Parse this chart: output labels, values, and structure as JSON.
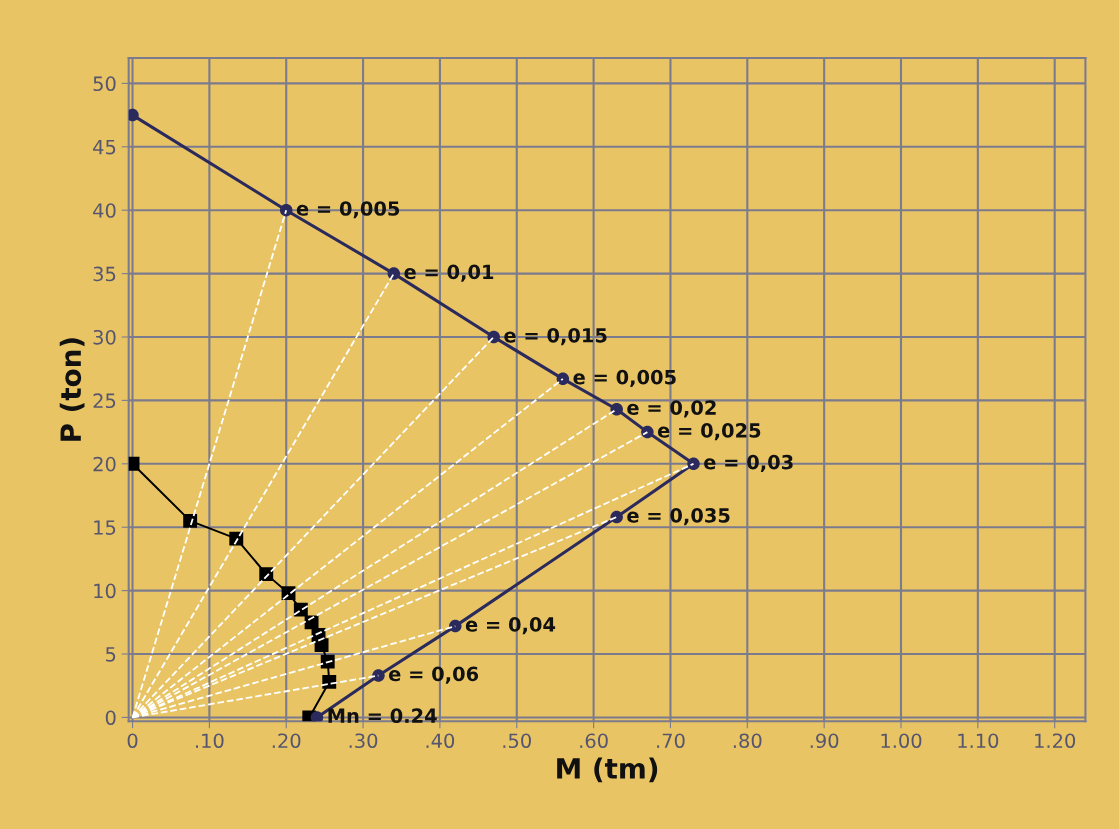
{
  "chart_data": {
    "type": "line",
    "xlabel": "M (tm)",
    "ylabel": "P (ton)",
    "xlim": [
      -0.005,
      1.24
    ],
    "ylim": [
      -0.3,
      52
    ],
    "xticks": [
      0,
      {
        "value": 0.1,
        "label": ".10"
      },
      {
        "value": 0.2,
        "label": ".20"
      },
      {
        "value": 0.3,
        "label": ".30"
      },
      {
        "value": 0.4,
        "label": ".40"
      },
      {
        "value": 0.5,
        "label": ".50"
      },
      {
        "value": 0.6,
        "label": ".60"
      },
      {
        "value": 0.7,
        "label": ".70"
      },
      {
        "value": 0.8,
        "label": ".80"
      },
      {
        "value": 0.9,
        "label": ".90"
      },
      {
        "value": 1.0,
        "label": "1.00"
      },
      {
        "value": 1.1,
        "label": "1.10"
      },
      {
        "value": 1.2,
        "label": "1.20"
      }
    ],
    "yticks": [
      0,
      5,
      10,
      15,
      20,
      25,
      30,
      35,
      40,
      45,
      50
    ],
    "grid": true,
    "series": [
      {
        "color": "#ffffff",
        "line_style": "dashed",
        "marker": "none",
        "x": [
          0,
          0.2
        ],
        "values": [
          0,
          40
        ]
      },
      {
        "color": "#ffffff",
        "line_style": "dashed",
        "marker": "none",
        "x": [
          0,
          0.34
        ],
        "values": [
          0,
          35
        ]
      },
      {
        "color": "#ffffff",
        "line_style": "dashed",
        "marker": "none",
        "x": [
          0,
          0.47
        ],
        "values": [
          0,
          30
        ]
      },
      {
        "color": "#ffffff",
        "line_style": "dashed",
        "marker": "none",
        "x": [
          0,
          0.56
        ],
        "values": [
          0,
          26.7
        ]
      },
      {
        "color": "#ffffff",
        "line_style": "dashed",
        "marker": "none",
        "x": [
          0,
          0.63
        ],
        "values": [
          0,
          24.3
        ]
      },
      {
        "color": "#ffffff",
        "line_style": "dashed",
        "marker": "none",
        "x": [
          0,
          0.67
        ],
        "values": [
          0,
          22.5
        ]
      },
      {
        "color": "#ffffff",
        "line_style": "dashed",
        "marker": "none",
        "x": [
          0,
          0.73
        ],
        "values": [
          0,
          20
        ]
      },
      {
        "color": "#ffffff",
        "line_style": "dashed",
        "marker": "none",
        "x": [
          0,
          0.63
        ],
        "values": [
          0,
          15.8
        ]
      },
      {
        "color": "#ffffff",
        "line_style": "dashed",
        "marker": "none",
        "x": [
          0,
          0.42
        ],
        "values": [
          0,
          7.2
        ]
      },
      {
        "color": "#ffffff",
        "line_style": "dashed",
        "marker": "none",
        "x": [
          0,
          0.32
        ],
        "values": [
          0,
          3.3
        ]
      },
      {
        "color": "#000000",
        "line_style": "solid",
        "marker": "square",
        "x": [
          0,
          0.075,
          0.135,
          0.174,
          0.203,
          0.219,
          0.233,
          0.242,
          0.246,
          0.254,
          0.256,
          0.23
        ],
        "values": [
          20,
          15.5,
          14.1,
          11.3,
          9.8,
          8.5,
          7.5,
          6.5,
          5.7,
          4.4,
          2.8,
          0
        ]
      },
      {
        "color": "#2b2a5c",
        "line_style": "solid",
        "marker": "circle",
        "x": [
          0,
          0.2,
          0.34,
          0.47,
          0.56,
          0.63,
          0.67,
          0.73,
          0.63,
          0.42,
          0.32,
          0.24
        ],
        "values": [
          47.5,
          40,
          35,
          30,
          26.7,
          24.3,
          22.5,
          20,
          15.8,
          7.2,
          3.3,
          0
        ]
      }
    ],
    "annotations": [
      {
        "text": "e = 0,005",
        "x": 0.2,
        "y": 40
      },
      {
        "text": "e = 0,01",
        "x": 0.34,
        "y": 35
      },
      {
        "text": "e = 0,015",
        "x": 0.47,
        "y": 30
      },
      {
        "text": "e = 0,005",
        "x": 0.56,
        "y": 26.7
      },
      {
        "text": "e = 0,02",
        "x": 0.63,
        "y": 24.3
      },
      {
        "text": "e = 0,025",
        "x": 0.67,
        "y": 22.5
      },
      {
        "text": "e = 0,03",
        "x": 0.73,
        "y": 20
      },
      {
        "text": "e = 0,035",
        "x": 0.63,
        "y": 15.8
      },
      {
        "text": "e = 0,04",
        "x": 0.42,
        "y": 7.2
      },
      {
        "text": "e = 0,06",
        "x": 0.32,
        "y": 3.3
      },
      {
        "text": "Mn = 0.24",
        "x": 0.24,
        "y": 0
      }
    ]
  }
}
